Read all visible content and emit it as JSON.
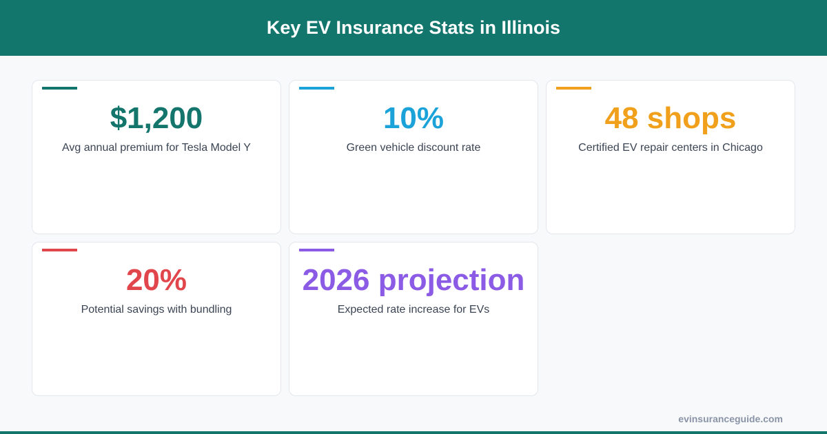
{
  "header": {
    "title": "Key EV Insurance Stats in Illinois"
  },
  "cards": [
    {
      "value": "$1,200",
      "label": "Avg annual premium for Tesla Model Y",
      "color": "#13756b"
    },
    {
      "value": "10%",
      "label": "Green vehicle discount rate",
      "color": "#1aa2d9"
    },
    {
      "value": "48 shops",
      "label": "Certified EV repair centers in Chicago",
      "color": "#f0a01b"
    },
    {
      "value": "20%",
      "label": "Potential savings with bundling",
      "color": "#e0464b"
    },
    {
      "value": "2026 projection",
      "label": "Expected rate increase for EVs",
      "color": "#8b5be6"
    }
  ],
  "footer": {
    "site": "evinsuranceguide.com"
  }
}
